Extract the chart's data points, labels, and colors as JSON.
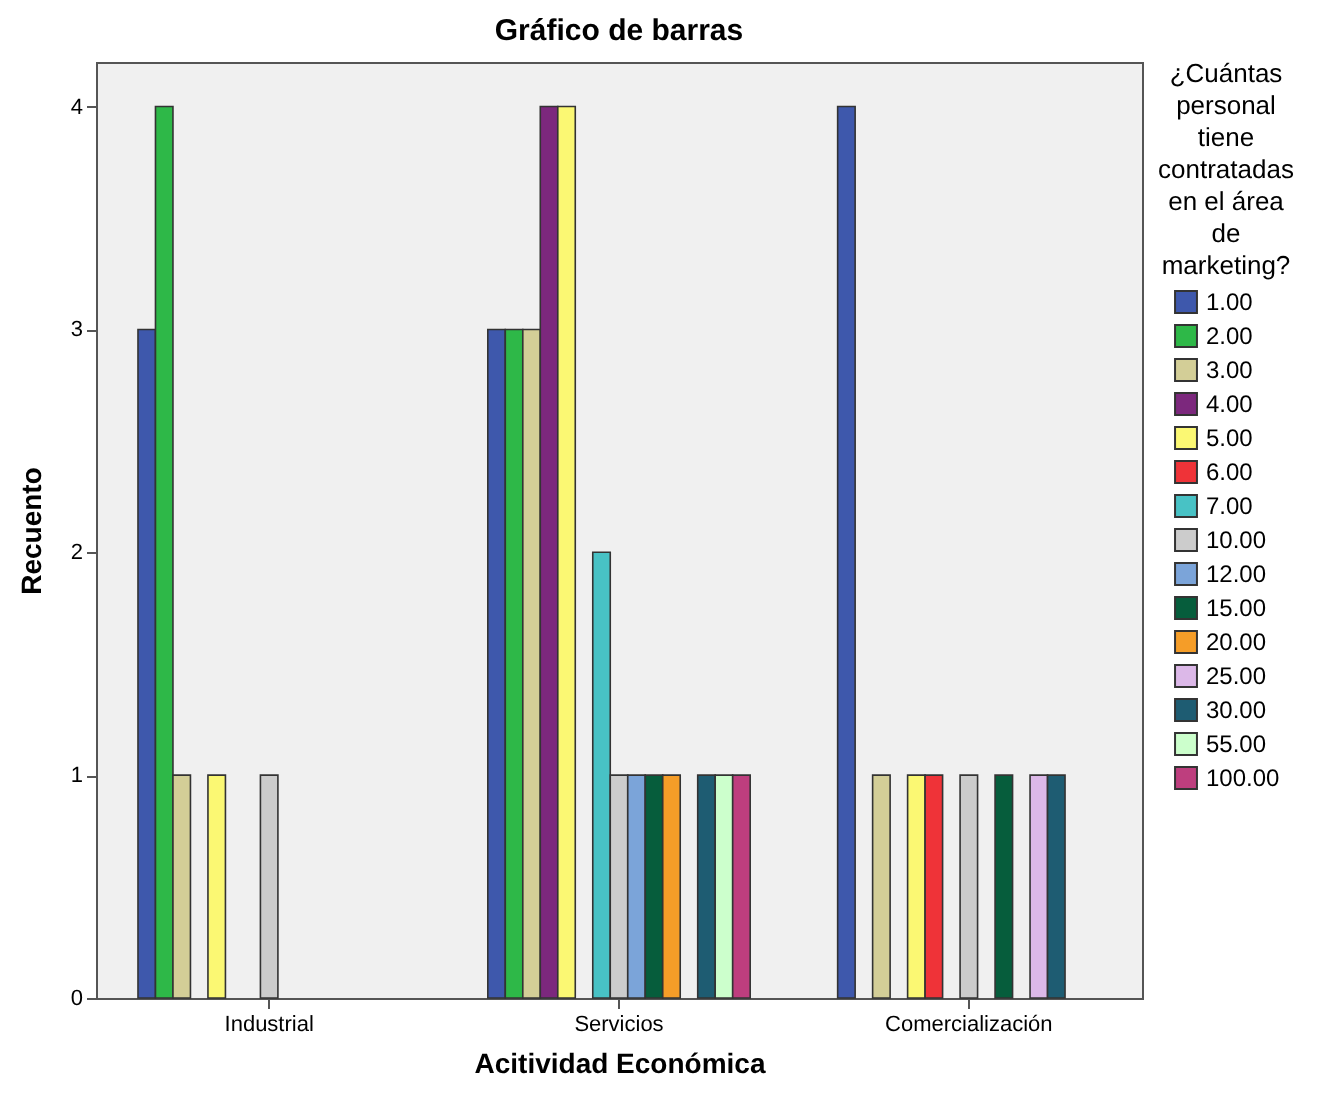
{
  "chart_data": {
    "type": "bar",
    "title": "Gráfico de barras",
    "xlabel": "Acitividad Económica",
    "ylabel": "Recuento",
    "legend_title": "¿Cuántas personal tiene contratadas en el área de marketing?",
    "categories": [
      "Industrial",
      "Servicios",
      "Comercialización"
    ],
    "series": [
      {
        "name": "1.00",
        "color": "#3e58ac",
        "values": [
          3,
          3,
          4
        ]
      },
      {
        "name": "2.00",
        "color": "#2eb848",
        "values": [
          4,
          3,
          null
        ]
      },
      {
        "name": "3.00",
        "color": "#d3ce97",
        "values": [
          1,
          3,
          1
        ]
      },
      {
        "name": "4.00",
        "color": "#7c287d",
        "values": [
          null,
          4,
          null
        ]
      },
      {
        "name": "5.00",
        "color": "#fbf873",
        "values": [
          1,
          4,
          1
        ]
      },
      {
        "name": "6.00",
        "color": "#ef3338",
        "values": [
          null,
          null,
          1
        ]
      },
      {
        "name": "7.00",
        "color": "#48c2c5",
        "values": [
          null,
          2,
          null
        ]
      },
      {
        "name": "10.00",
        "color": "#cccccc",
        "values": [
          1,
          1,
          1
        ]
      },
      {
        "name": "12.00",
        "color": "#7ba4d9",
        "values": [
          null,
          1,
          null
        ]
      },
      {
        "name": "15.00",
        "color": "#065d3c",
        "values": [
          null,
          1,
          1
        ]
      },
      {
        "name": "20.00",
        "color": "#f59d28",
        "values": [
          null,
          1,
          null
        ]
      },
      {
        "name": "25.00",
        "color": "#dcb8e8",
        "values": [
          null,
          null,
          1
        ]
      },
      {
        "name": "30.00",
        "color": "#1e5c72",
        "values": [
          null,
          1,
          1
        ]
      },
      {
        "name": "55.00",
        "color": "#ccffcc",
        "values": [
          null,
          1,
          null
        ]
      },
      {
        "name": "100.00",
        "color": "#be3e7e",
        "values": [
          null,
          1,
          null
        ]
      }
    ],
    "ylim": [
      0,
      4.2
    ],
    "yticks": [
      0,
      1,
      2,
      3,
      4
    ],
    "legend": "right"
  }
}
